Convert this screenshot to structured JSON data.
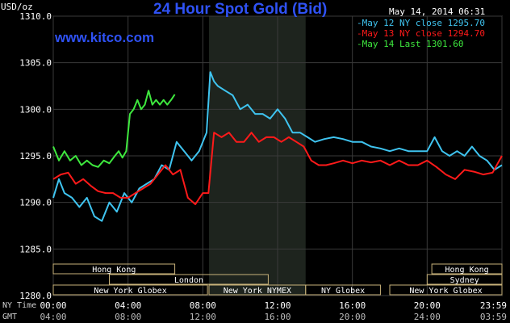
{
  "header": {
    "title": "24 Hour Spot Gold (Bid)",
    "site": "www.kitco.com",
    "timestamp": "May 14, 2014 06:31",
    "y_unit": "USD/oz"
  },
  "legend": [
    {
      "label": "May 12 NY close 1295.70",
      "color": "#3fc4f0"
    },
    {
      "label": "May 13 NY close 1294.70",
      "color": "#ff1a1a"
    },
    {
      "label": "May 14 Last 1301.60",
      "color": "#3ee83e"
    }
  ],
  "timezones": {
    "ny_label": "NY Time",
    "gmt_label": "GMT"
  },
  "sessions": [
    {
      "label": "Hong Kong",
      "start": 0,
      "end": 6.5,
      "row": 0
    },
    {
      "label": "London",
      "start": 3,
      "end": 11.5,
      "row": 1
    },
    {
      "label": "New York Globex",
      "start": 0,
      "end": 8.25,
      "row": 2
    },
    {
      "label": "New York NYMEX",
      "start": 8.33,
      "end": 13.5,
      "row": 2
    },
    {
      "label": "NY Globex",
      "start": 13.5,
      "end": 17.5,
      "row": 2
    },
    {
      "label": "Sydney",
      "start": 20,
      "end": 24,
      "row": 1
    },
    {
      "label": "Hong Kong",
      "start": 20.25,
      "end": 24,
      "row": 0
    },
    {
      "label": "New York Globex",
      "start": 18,
      "end": 24,
      "row": 2
    }
  ],
  "chart_data": {
    "type": "line",
    "title": "24 Hour Spot Gold (Bid)",
    "ylabel": "USD/oz",
    "ylim": [
      1280,
      1310
    ],
    "xlim": [
      0,
      24
    ],
    "yticks": [
      "1280.0",
      "1285.0",
      "1290.0",
      "1295.0",
      "1300.0",
      "1305.0",
      "1310.0"
    ],
    "xticks_ny": [
      "00:00",
      "04:00",
      "08:00",
      "12:00",
      "16:00",
      "20:00",
      "23:59"
    ],
    "xticks_gmt": [
      "04:00",
      "08:00",
      "12:00",
      "16:00",
      "20:00",
      "24:00",
      "03:59"
    ],
    "shaded_x_range": [
      8.33,
      13.5
    ],
    "grid": true,
    "legend_position": "top-right",
    "series": [
      {
        "name": "May 12 NY close 1295.70",
        "color": "#3fc4f0",
        "x": [
          0,
          0.3,
          0.6,
          1,
          1.4,
          1.8,
          2.2,
          2.6,
          3,
          3.4,
          3.8,
          4.2,
          4.6,
          5,
          5.4,
          5.8,
          6.2,
          6.6,
          7,
          7.4,
          7.8,
          8.2,
          8.4,
          8.6,
          8.8,
          9.2,
          9.6,
          10,
          10.4,
          10.8,
          11.2,
          11.6,
          12,
          12.4,
          12.8,
          13.2,
          13.6,
          14,
          14.5,
          15,
          15.5,
          16,
          16.5,
          17,
          17.5,
          18,
          18.5,
          19,
          19.5,
          20,
          20.4,
          20.8,
          21.2,
          21.6,
          22,
          22.4,
          22.8,
          23.2,
          23.6,
          24
        ],
        "y": [
          1290.5,
          1292.5,
          1291,
          1290.5,
          1289.5,
          1290.5,
          1288.5,
          1288,
          1290,
          1289,
          1291,
          1290,
          1291.5,
          1292,
          1292.5,
          1294,
          1293.5,
          1296.5,
          1295.5,
          1294.5,
          1295.5,
          1297.5,
          1304,
          1303,
          1302.5,
          1302,
          1301.5,
          1300,
          1300.5,
          1299.5,
          1299.5,
          1299,
          1300,
          1299,
          1297.5,
          1297.5,
          1297,
          1296.5,
          1296.8,
          1297,
          1296.8,
          1296.5,
          1296.5,
          1296,
          1295.8,
          1295.5,
          1295.8,
          1295.5,
          1295.5,
          1295.5,
          1297,
          1295.5,
          1295,
          1295.5,
          1295,
          1296,
          1295,
          1294.5,
          1293.5,
          1294
        ]
      },
      {
        "name": "May 13 NY close 1294.70",
        "color": "#ff1a1a",
        "x": [
          0,
          0.4,
          0.8,
          1.2,
          1.6,
          2,
          2.4,
          2.8,
          3.2,
          3.6,
          4,
          4.4,
          4.8,
          5.2,
          5.6,
          6,
          6.4,
          6.8,
          7.2,
          7.6,
          8,
          8.3,
          8.6,
          9,
          9.4,
          9.8,
          10.2,
          10.6,
          11,
          11.4,
          11.8,
          12.2,
          12.6,
          13,
          13.4,
          13.8,
          14.2,
          14.6,
          15,
          15.5,
          16,
          16.5,
          17,
          17.5,
          18,
          18.5,
          19,
          19.5,
          20,
          20.5,
          21,
          21.5,
          22,
          22.5,
          23,
          23.5,
          24
        ],
        "y": [
          1292.5,
          1293,
          1293.2,
          1292,
          1292.5,
          1291.8,
          1291.2,
          1291,
          1291,
          1290.5,
          1290.5,
          1291,
          1291.5,
          1292,
          1293,
          1294,
          1293,
          1293.5,
          1290.5,
          1289.8,
          1291,
          1291,
          1297.5,
          1297,
          1297.5,
          1296.5,
          1296.5,
          1297.5,
          1296.5,
          1297,
          1297,
          1296.5,
          1297,
          1296.5,
          1296,
          1294.5,
          1294,
          1294,
          1294.2,
          1294.5,
          1294.2,
          1294.5,
          1294.3,
          1294.5,
          1294,
          1294.5,
          1294,
          1294,
          1294.5,
          1293.8,
          1293,
          1292.5,
          1293.5,
          1293.3,
          1293,
          1293.2,
          1295
        ]
      },
      {
        "name": "May 14 Last 1301.60",
        "color": "#3ee83e",
        "x": [
          0,
          0.3,
          0.6,
          0.9,
          1.2,
          1.5,
          1.8,
          2.1,
          2.4,
          2.7,
          3,
          3.3,
          3.5,
          3.7,
          3.9,
          4.1,
          4.3,
          4.5,
          4.7,
          4.9,
          5.1,
          5.3,
          5.5,
          5.7,
          5.9,
          6.1,
          6.3,
          6.5
        ],
        "y": [
          1296,
          1294.5,
          1295.5,
          1294.5,
          1295,
          1294,
          1294.5,
          1294,
          1293.8,
          1294.5,
          1294.2,
          1295,
          1295.5,
          1294.8,
          1295.5,
          1299.5,
          1300,
          1301,
          1300,
          1300.5,
          1302,
          1300.5,
          1301,
          1300.5,
          1301,
          1300.5,
          1301,
          1301.6
        ]
      }
    ]
  }
}
